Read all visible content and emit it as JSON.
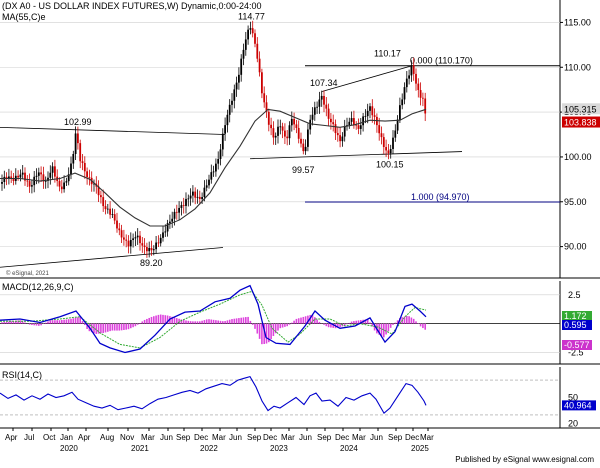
{
  "header": {
    "price_title": "(DX A0 - US DOLLAR INDEX FUTURES,W) Dynamic,0:00-24:00",
    "ma_label": "MA(55,C)e",
    "macd_label": "MACD(12,26,9,C)",
    "rsi_label": "RSI(14,C)"
  },
  "footer": {
    "text": "Published by eSignal  www.esignal.com"
  },
  "chart_data": [
    {
      "type": "candlestick",
      "panel": "price",
      "y_ticks": [
        "115.00",
        "110.00",
        "105.00",
        "100.00",
        "95.00",
        "90.00"
      ],
      "ylim": [
        86.5,
        117.5
      ],
      "copyright": "© eSignal, 2021",
      "price_series": [
        [
          0,
          97.0
        ],
        [
          6,
          97.8
        ],
        [
          14,
          97.5
        ],
        [
          22,
          98.2
        ],
        [
          30,
          96.6
        ],
        [
          38,
          98.4
        ],
        [
          46,
          97.1
        ],
        [
          52,
          98.9
        ],
        [
          60,
          96.4
        ],
        [
          66,
          97.2
        ],
        [
          72,
          99.4
        ],
        [
          76,
          102.9
        ],
        [
          80,
          99.8
        ],
        [
          88,
          97.6
        ],
        [
          96,
          96.7
        ],
        [
          104,
          94.4
        ],
        [
          112,
          93.6
        ],
        [
          120,
          91.4
        ],
        [
          128,
          90.2
        ],
        [
          136,
          91.3
        ],
        [
          144,
          89.8
        ],
        [
          152,
          89.6
        ],
        [
          160,
          90.8
        ],
        [
          168,
          92.5
        ],
        [
          176,
          93.9
        ],
        [
          184,
          94.8
        ],
        [
          192,
          96.0
        ],
        [
          200,
          95.2
        ],
        [
          210,
          97.8
        ],
        [
          218,
          99.6
        ],
        [
          226,
          104.2
        ],
        [
          232,
          106.5
        ],
        [
          238,
          108.8
        ],
        [
          244,
          112.4
        ],
        [
          250,
          114.77
        ],
        [
          256,
          112.2
        ],
        [
          262,
          107.2
        ],
        [
          268,
          104.1
        ],
        [
          274,
          102.0
        ],
        [
          280,
          103.7
        ],
        [
          286,
          101.8
        ],
        [
          292,
          104.4
        ],
        [
          298,
          102.5
        ],
        [
          304,
          100.3
        ],
        [
          310,
          104.2
        ],
        [
          316,
          105.6
        ],
        [
          322,
          106.8
        ],
        [
          328,
          104.5
        ],
        [
          334,
          103.3
        ],
        [
          340,
          101.7
        ],
        [
          346,
          103.6
        ],
        [
          352,
          104.2
        ],
        [
          358,
          103.0
        ],
        [
          364,
          104.5
        ],
        [
          370,
          105.5
        ],
        [
          376,
          103.9
        ],
        [
          382,
          101.8
        ],
        [
          388,
          100.15
        ],
        [
          394,
          102.3
        ],
        [
          400,
          105.6
        ],
        [
          406,
          108.4
        ],
        [
          412,
          110.17
        ],
        [
          418,
          107.3
        ],
        [
          424,
          106.2
        ],
        [
          426,
          103.838
        ]
      ],
      "ma_series": [
        [
          0,
          97.6
        ],
        [
          20,
          97.6
        ],
        [
          40,
          97.3
        ],
        [
          60,
          97.6
        ],
        [
          75,
          98.2
        ],
        [
          90,
          97.5
        ],
        [
          105,
          96.0
        ],
        [
          120,
          94.4
        ],
        [
          135,
          93.2
        ],
        [
          150,
          92.3
        ],
        [
          165,
          92.3
        ],
        [
          180,
          93.0
        ],
        [
          195,
          94.2
        ],
        [
          210,
          96.0
        ],
        [
          225,
          98.8
        ],
        [
          240,
          101.2
        ],
        [
          255,
          104.0
        ],
        [
          268,
          105.3
        ],
        [
          280,
          105.1
        ],
        [
          295,
          104.4
        ],
        [
          310,
          103.7
        ],
        [
          325,
          103.5
        ],
        [
          340,
          103.3
        ],
        [
          355,
          103.6
        ],
        [
          370,
          104.1
        ],
        [
          385,
          104.0
        ],
        [
          400,
          104.1
        ],
        [
          412,
          104.8
        ],
        [
          426,
          105.315
        ]
      ],
      "annotations": [
        {
          "label": "102.99",
          "x": 76,
          "y": 102.99,
          "pos": "above"
        },
        {
          "label": "114.77",
          "x": 250,
          "y": 114.77,
          "pos": "above"
        },
        {
          "label": "107.34",
          "x": 322,
          "y": 107.34,
          "pos": "above"
        },
        {
          "label": "110.17",
          "x": 412,
          "y": 110.17,
          "pos": "above-left"
        },
        {
          "label": "89.20",
          "x": 152,
          "y": 89.2,
          "pos": "below"
        },
        {
          "label": "99.57",
          "x": 304,
          "y": 99.57,
          "pos": "below"
        },
        {
          "label": "100.15",
          "x": 388,
          "y": 100.15,
          "pos": "below"
        }
      ],
      "fib_levels": [
        {
          "label": "0.000 (110.170)",
          "value": 110.17,
          "x_start": 305,
          "color": "#000000"
        },
        {
          "label": "1.000 (94.970)",
          "value": 94.97,
          "x_start": 305,
          "color": "#000080"
        }
      ],
      "trendlines": [
        {
          "x1": 0,
          "y1": 103.3,
          "x2": 225,
          "y2": 102.5
        },
        {
          "x1": 0,
          "y1": 87.7,
          "x2": 223,
          "y2": 89.9
        },
        {
          "x1": 250,
          "y1": 99.8,
          "x2": 462,
          "y2": 100.6
        },
        {
          "x1": 322,
          "y1": 107.3,
          "x2": 412,
          "y2": 110.17
        }
      ],
      "last_values": [
        {
          "value": "105.315",
          "role": "ma",
          "bg": "#d9d9d9",
          "fg": "#000000"
        },
        {
          "value": "103.838",
          "role": "price",
          "bg": "#cc0000",
          "fg": "#ffffff"
        }
      ],
      "colors": {
        "up": "#000000",
        "down": "#cc0000",
        "ma": "#333333",
        "grid": "#cfcfcf",
        "axis": "#000000"
      }
    },
    {
      "type": "line",
      "panel": "macd",
      "y_ticks": [
        "2.5",
        "0",
        "-2.5"
      ],
      "ylim": [
        -3.5,
        3.7
      ],
      "macd_series": [
        [
          0,
          0.3
        ],
        [
          20,
          0.4
        ],
        [
          40,
          0.1
        ],
        [
          60,
          0.6
        ],
        [
          76,
          1.1
        ],
        [
          90,
          -0.4
        ],
        [
          100,
          -1.7
        ],
        [
          110,
          -2.1
        ],
        [
          125,
          -2.5
        ],
        [
          140,
          -2.2
        ],
        [
          155,
          -1.0
        ],
        [
          170,
          0.4
        ],
        [
          185,
          1.0
        ],
        [
          200,
          1.1
        ],
        [
          215,
          1.9
        ],
        [
          230,
          2.2
        ],
        [
          240,
          2.9
        ],
        [
          250,
          3.3
        ],
        [
          258,
          1.7
        ],
        [
          266,
          -1.2
        ],
        [
          276,
          -1.7
        ],
        [
          290,
          -1.8
        ],
        [
          305,
          -0.2
        ],
        [
          315,
          1.1
        ],
        [
          325,
          0.3
        ],
        [
          340,
          -0.4
        ],
        [
          355,
          -0.2
        ],
        [
          370,
          0.5
        ],
        [
          385,
          -1.6
        ],
        [
          395,
          -0.7
        ],
        [
          405,
          1.5
        ],
        [
          412,
          1.7
        ],
        [
          420,
          1.1
        ],
        [
          426,
          0.595
        ]
      ],
      "signal_series": [
        [
          0,
          0.2
        ],
        [
          30,
          0.2
        ],
        [
          60,
          0.4
        ],
        [
          80,
          0.6
        ],
        [
          100,
          -0.8
        ],
        [
          120,
          -1.8
        ],
        [
          140,
          -2.1
        ],
        [
          160,
          -1.2
        ],
        [
          180,
          0.2
        ],
        [
          200,
          1.0
        ],
        [
          220,
          1.7
        ],
        [
          240,
          2.5
        ],
        [
          252,
          2.8
        ],
        [
          262,
          1.6
        ],
        [
          272,
          -0.4
        ],
        [
          288,
          -1.6
        ],
        [
          300,
          -0.9
        ],
        [
          315,
          0.4
        ],
        [
          330,
          0.4
        ],
        [
          345,
          -0.2
        ],
        [
          360,
          0.0
        ],
        [
          378,
          -0.3
        ],
        [
          392,
          -0.9
        ],
        [
          405,
          0.6
        ],
        [
          415,
          1.4
        ],
        [
          426,
          1.172
        ]
      ],
      "histogram": [
        [
          0,
          0.1
        ],
        [
          10,
          0.2
        ],
        [
          20,
          0.3
        ],
        [
          30,
          -0.1
        ],
        [
          40,
          -0.2
        ],
        [
          50,
          0.3
        ],
        [
          60,
          0.3
        ],
        [
          70,
          0.4
        ],
        [
          80,
          0.6
        ],
        [
          88,
          -0.6
        ],
        [
          96,
          -0.9
        ],
        [
          104,
          -0.8
        ],
        [
          112,
          -0.6
        ],
        [
          120,
          -0.6
        ],
        [
          128,
          -0.5
        ],
        [
          136,
          -0.2
        ],
        [
          144,
          0.3
        ],
        [
          152,
          0.6
        ],
        [
          160,
          0.8
        ],
        [
          168,
          0.7
        ],
        [
          176,
          0.5
        ],
        [
          184,
          0.3
        ],
        [
          192,
          0.2
        ],
        [
          200,
          0.2
        ],
        [
          208,
          0.4
        ],
        [
          216,
          0.3
        ],
        [
          224,
          0.2
        ],
        [
          232,
          0.4
        ],
        [
          240,
          0.5
        ],
        [
          248,
          0.6
        ],
        [
          256,
          -0.6
        ],
        [
          262,
          -1.8
        ],
        [
          268,
          -1.7
        ],
        [
          274,
          -1.0
        ],
        [
          280,
          -0.4
        ],
        [
          288,
          -0.2
        ],
        [
          296,
          0.4
        ],
        [
          304,
          0.6
        ],
        [
          312,
          0.8
        ],
        [
          320,
          0.1
        ],
        [
          328,
          -0.3
        ],
        [
          336,
          -0.4
        ],
        [
          344,
          -0.2
        ],
        [
          352,
          0.2
        ],
        [
          360,
          0.3
        ],
        [
          368,
          0.4
        ],
        [
          376,
          -0.8
        ],
        [
          384,
          -1.2
        ],
        [
          392,
          -0.2
        ],
        [
          400,
          0.5
        ],
        [
          408,
          0.7
        ],
        [
          414,
          0.4
        ],
        [
          420,
          -0.2
        ],
        [
          426,
          -0.577
        ]
      ],
      "last_values": [
        {
          "value": "1.172",
          "role": "signal",
          "bg": "#33aa33",
          "fg": "#ffffff"
        },
        {
          "value": "0.595",
          "role": "macd",
          "bg": "#0000cc",
          "fg": "#ffffff"
        },
        {
          "value": "-0.577",
          "role": "hist",
          "bg": "#cc33cc",
          "fg": "#ffffff"
        }
      ],
      "colors": {
        "macd": "#0000cc",
        "signal": "#33aa33",
        "hist": "#dd44dd"
      }
    },
    {
      "type": "line",
      "panel": "rsi",
      "y_ticks": [
        "50",
        "20"
      ],
      "ylim": [
        15,
        85
      ],
      "rsi_series": [
        [
          0,
          55
        ],
        [
          8,
          49
        ],
        [
          16,
          53
        ],
        [
          24,
          47
        ],
        [
          32,
          52
        ],
        [
          40,
          48
        ],
        [
          48,
          54
        ],
        [
          56,
          50
        ],
        [
          64,
          52
        ],
        [
          72,
          56
        ],
        [
          78,
          48
        ],
        [
          86,
          44
        ],
        [
          94,
          40
        ],
        [
          102,
          38
        ],
        [
          110,
          41
        ],
        [
          118,
          36
        ],
        [
          126,
          38
        ],
        [
          134,
          40
        ],
        [
          142,
          37
        ],
        [
          150,
          43
        ],
        [
          158,
          48
        ],
        [
          166,
          50
        ],
        [
          174,
          53
        ],
        [
          182,
          56
        ],
        [
          190,
          58
        ],
        [
          198,
          55
        ],
        [
          206,
          60
        ],
        [
          214,
          63
        ],
        [
          222,
          66
        ],
        [
          230,
          64
        ],
        [
          238,
          70
        ],
        [
          244,
          72
        ],
        [
          250,
          74
        ],
        [
          256,
          62
        ],
        [
          262,
          46
        ],
        [
          268,
          35
        ],
        [
          274,
          40
        ],
        [
          280,
          38
        ],
        [
          288,
          44
        ],
        [
          296,
          50
        ],
        [
          304,
          42
        ],
        [
          310,
          52
        ],
        [
          316,
          55
        ],
        [
          322,
          46
        ],
        [
          330,
          47
        ],
        [
          338,
          40
        ],
        [
          346,
          50
        ],
        [
          354,
          47
        ],
        [
          362,
          52
        ],
        [
          370,
          55
        ],
        [
          376,
          48
        ],
        [
          384,
          32
        ],
        [
          390,
          38
        ],
        [
          398,
          52
        ],
        [
          406,
          66
        ],
        [
          412,
          64
        ],
        [
          418,
          56
        ],
        [
          424,
          46
        ],
        [
          426,
          40.964
        ]
      ],
      "last_values": [
        {
          "value": "40.964",
          "role": "rsi",
          "bg": "#0000cc",
          "fg": "#ffffff"
        }
      ],
      "colors": {
        "rsi": "#0000cc"
      }
    }
  ],
  "x_axis": {
    "months": [
      {
        "label": "Apr",
        "x": 13
      },
      {
        "label": "Jul",
        "x": 32
      },
      {
        "label": "Oct",
        "x": 51
      },
      {
        "label": "Jan",
        "x": 68
      },
      {
        "label": "Apr",
        "x": 86
      },
      {
        "label": "Aug",
        "x": 108
      },
      {
        "label": "Nov",
        "x": 128
      },
      {
        "label": "Mar",
        "x": 149
      },
      {
        "label": "Jun",
        "x": 168
      },
      {
        "label": "Sep",
        "x": 184
      },
      {
        "label": "Dec",
        "x": 202
      },
      {
        "label": "Mar",
        "x": 220
      },
      {
        "label": "Jun",
        "x": 237
      },
      {
        "label": "Sep",
        "x": 255
      },
      {
        "label": "Dec",
        "x": 271
      },
      {
        "label": "Mar",
        "x": 289
      },
      {
        "label": "Jun",
        "x": 307
      },
      {
        "label": "Sep",
        "x": 325
      },
      {
        "label": "Dec",
        "x": 343
      },
      {
        "label": "Mar",
        "x": 360
      },
      {
        "label": "Jun",
        "x": 378
      },
      {
        "label": "Sep",
        "x": 396
      },
      {
        "label": "Dec",
        "x": 413
      },
      {
        "label": "Mar",
        "x": 428
      }
    ],
    "years": [
      {
        "label": "2020",
        "x": 70
      },
      {
        "label": "2021",
        "x": 141
      },
      {
        "label": "2022",
        "x": 210
      },
      {
        "label": "2023",
        "x": 280
      },
      {
        "label": "2024",
        "x": 350
      },
      {
        "label": "2025",
        "x": 421
      }
    ]
  }
}
